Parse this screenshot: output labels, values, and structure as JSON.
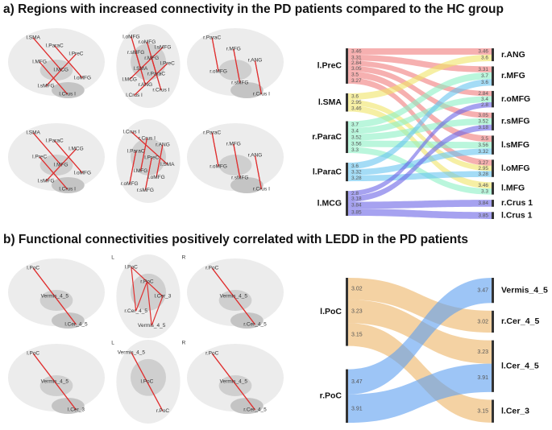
{
  "panel_a": {
    "title": "a) Regions with increased connectivity in the PD patients compared to the HC group",
    "brain_views": [
      {
        "labels": [
          "l.SMA",
          "l.ParaC",
          "l.PreC",
          "l.MFG",
          "l.MCG",
          "l.oMFG",
          "l.sMFG",
          "l.Crus I"
        ]
      },
      {
        "labels": [
          "l.oMFG",
          "r.oMFG",
          "l.sMFG",
          "r.sMFG",
          "r.MFG",
          "l.PreC",
          "l.SMA",
          "r.ParaC",
          "l.MCG",
          "r.ANG",
          "r.Crus I",
          "l.Crus I"
        ]
      },
      {
        "labels": [
          "r.ParaC",
          "r.MFG",
          "r.ANG",
          "r.oMFG",
          "r.sMFG",
          "r.Crus I"
        ]
      },
      {
        "labels": [
          "l.SMA",
          "l.ParaC",
          "l.MCG",
          "l.PreC",
          "l.MFG",
          "l.oMFG",
          "l.sMFG",
          "l.Crus I"
        ]
      },
      {
        "labels": [
          "l.Crus I",
          "r.Crus I",
          "r.ANG",
          "l.ParaC",
          "l.PreC",
          "l.SMA",
          "l.MFG",
          "l.oMFG",
          "r.oMFG",
          "r.sMFG"
        ]
      },
      {
        "labels": [
          "r.ParaC",
          "r.MFG",
          "r.ANG",
          "r.oMFG",
          "r.sMFG",
          "r.Crus I"
        ]
      }
    ],
    "sankey": {
      "left_nodes": [
        {
          "name": "l.PreC",
          "color": "#f07c7c",
          "links": [
            {
              "target": "r.ANG",
              "value": 3.46
            },
            {
              "target": "r.MFG",
              "value": 3.31
            },
            {
              "target": "r.oMFG",
              "value": 2.84
            },
            {
              "target": "r.sMFG",
              "value": 3.05
            },
            {
              "target": "l.sMFG",
              "value": 3.5
            },
            {
              "target": "l.oMFG",
              "value": 3.27
            }
          ]
        },
        {
          "name": "l.SMA",
          "color": "#f0e468",
          "links": [
            {
              "target": "r.ANG",
              "value": 3.6
            },
            {
              "target": "l.oMFG",
              "value": 2.95
            },
            {
              "target": "l.MFG",
              "value": 3.46
            }
          ]
        },
        {
          "name": "r.ParaC",
          "color": "#8cf0c4",
          "links": [
            {
              "target": "r.MFG",
              "value": 3.7
            },
            {
              "target": "r.oMFG",
              "value": 3.4
            },
            {
              "target": "r.sMFG",
              "value": 3.52
            },
            {
              "target": "l.sMFG",
              "value": 3.56
            },
            {
              "target": "l.MFG",
              "value": 3.3
            }
          ]
        },
        {
          "name": "l.ParaC",
          "color": "#68c4f0",
          "links": [
            {
              "target": "r.MFG",
              "value": 3.6
            },
            {
              "target": "l.sMFG",
              "value": 3.32
            },
            {
              "target": "l.oMFG",
              "value": 3.28
            }
          ]
        },
        {
          "name": "l.MCG",
          "color": "#6a64e6",
          "links": [
            {
              "target": "r.oMFG",
              "value": 2.8
            },
            {
              "target": "r.sMFG",
              "value": 3.18
            },
            {
              "target": "r.Crus 1",
              "value": 3.84
            },
            {
              "target": "l.Crus 1",
              "value": 3.85
            }
          ]
        }
      ],
      "right_nodes": [
        "r.ANG",
        "r.MFG",
        "r.oMFG",
        "r.sMFG",
        "l.sMFG",
        "l.oMFG",
        "l.MFG",
        "r.Crus 1",
        "l.Crus 1"
      ]
    }
  },
  "panel_b": {
    "title": "b) Functional connectivities positively correlated with LEDD in the PD patients",
    "brain_views": [
      {
        "labels": [
          "l.PoC",
          "Vermis_4_5",
          "l.Cer_4_5"
        ]
      },
      {
        "labels": [
          "l.PoC",
          "r.PoC",
          "l.Cer_3",
          "r.Cer_4_5",
          "Vermis_4_5"
        ],
        "orientation": [
          "L",
          "R"
        ]
      },
      {
        "labels": [
          "r.PoC",
          "Vermis_4_5",
          "r.Cer_4_5"
        ]
      },
      {
        "labels": [
          "l.PoC",
          "Vermis_4_5",
          "l.Cer_3"
        ]
      },
      {
        "labels": [
          "Vermis_4_5",
          "l.PoC",
          "r.PoC"
        ],
        "orientation": [
          "L",
          "R"
        ]
      },
      {
        "labels": [
          "r.PoC",
          "Vermis_4_5",
          "r.Cer_4_5"
        ]
      }
    ],
    "sankey": {
      "left_nodes": [
        {
          "name": "l.PoC",
          "color": "#ecb466",
          "links": [
            {
              "target": "r.Cer_4_5",
              "value": 3.02
            },
            {
              "target": "l.Cer_4_5",
              "value": 3.23
            },
            {
              "target": "l.Cer_3",
              "value": 3.15
            }
          ]
        },
        {
          "name": "r.PoC",
          "color": "#5c9ff0",
          "links": [
            {
              "target": "Vermis_4_5",
              "value": 3.47
            },
            {
              "target": "l.Cer_4_5",
              "value": 3.91
            }
          ]
        }
      ],
      "right_nodes": [
        "Vermis_4_5",
        "r.Cer_4_5",
        "l.Cer_4_5",
        "l.Cer_3"
      ]
    }
  }
}
